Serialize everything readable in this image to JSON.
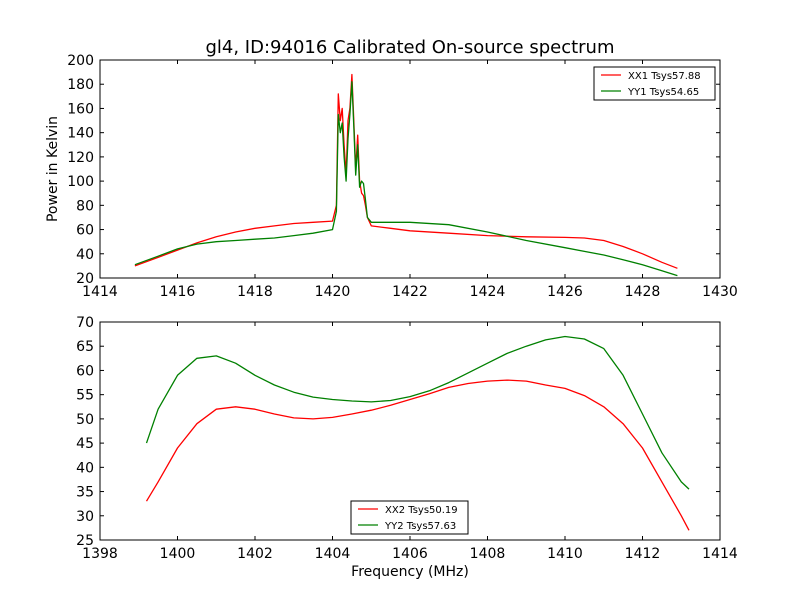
{
  "figure": {
    "title": "gl4, ID:94016 Calibrated On-source spectrum",
    "ylabel": "Power in Kelvin",
    "xlabel": "Frequency (MHz)"
  },
  "chart_data": [
    {
      "type": "line",
      "title": "gl4, ID:94016 Calibrated On-source spectrum",
      "xlabel": "",
      "ylabel": "Power in Kelvin",
      "xlim": [
        1414,
        1430
      ],
      "ylim": [
        20,
        200
      ],
      "xticks": [
        1414,
        1416,
        1418,
        1420,
        1422,
        1424,
        1426,
        1428,
        1430
      ],
      "yticks": [
        20,
        40,
        60,
        80,
        100,
        120,
        140,
        160,
        180,
        200
      ],
      "grid": false,
      "legend": "top-right",
      "series": [
        {
          "name": "XX1 Tsys57.88",
          "color": "#ff0000",
          "x": [
            1414.9,
            1415.5,
            1416.0,
            1416.5,
            1417.0,
            1417.5,
            1418.0,
            1418.5,
            1419.0,
            1419.5,
            1420.0,
            1420.1,
            1420.15,
            1420.2,
            1420.25,
            1420.3,
            1420.35,
            1420.4,
            1420.45,
            1420.5,
            1420.55,
            1420.6,
            1420.65,
            1420.7,
            1420.75,
            1420.8,
            1420.85,
            1420.9,
            1421.0,
            1421.5,
            1422.0,
            1423.0,
            1424.0,
            1425.0,
            1426.0,
            1426.5,
            1427.0,
            1427.5,
            1428.0,
            1428.5,
            1428.9
          ],
          "y": [
            30,
            37,
            43,
            49,
            54,
            58,
            61,
            63,
            65,
            66,
            67,
            80,
            172,
            150,
            160,
            130,
            105,
            150,
            160,
            188,
            150,
            110,
            138,
            100,
            90,
            88,
            80,
            70,
            63,
            61,
            59,
            57,
            55,
            54,
            53.5,
            53,
            51,
            46,
            40,
            33,
            28
          ]
        },
        {
          "name": "YY1 Tsys54.65",
          "color": "#008000",
          "x": [
            1414.9,
            1415.5,
            1416.0,
            1416.5,
            1417.0,
            1417.5,
            1418.0,
            1418.5,
            1419.0,
            1419.5,
            1420.0,
            1420.1,
            1420.15,
            1420.2,
            1420.25,
            1420.3,
            1420.35,
            1420.4,
            1420.45,
            1420.5,
            1420.55,
            1420.6,
            1420.65,
            1420.7,
            1420.75,
            1420.8,
            1420.85,
            1420.9,
            1421.0,
            1421.5,
            1422.0,
            1423.0,
            1424.0,
            1425.0,
            1426.0,
            1426.5,
            1427.0,
            1427.5,
            1428.0,
            1428.5,
            1428.9
          ],
          "y": [
            31,
            38,
            44,
            48,
            50,
            51,
            52,
            53,
            55,
            57,
            60,
            75,
            155,
            140,
            148,
            120,
            100,
            135,
            155,
            182,
            145,
            105,
            130,
            95,
            100,
            98,
            85,
            70,
            66,
            66,
            66,
            64,
            58,
            51,
            45,
            42,
            39,
            35,
            31,
            26,
            22
          ]
        }
      ]
    },
    {
      "type": "line",
      "title": "",
      "xlabel": "Frequency (MHz)",
      "ylabel": "",
      "xlim": [
        1398,
        1414
      ],
      "ylim": [
        25,
        70
      ],
      "xticks": [
        1398,
        1400,
        1402,
        1404,
        1406,
        1408,
        1410,
        1412,
        1414
      ],
      "yticks": [
        25,
        30,
        35,
        40,
        45,
        50,
        55,
        60,
        65,
        70
      ],
      "grid": false,
      "legend": "bottom-center",
      "series": [
        {
          "name": "XX2 Tsys50.19",
          "color": "#ff0000",
          "x": [
            1399.2,
            1399.5,
            1400.0,
            1400.5,
            1401.0,
            1401.5,
            1402.0,
            1402.5,
            1403.0,
            1403.5,
            1404.0,
            1404.5,
            1405.0,
            1405.5,
            1406.0,
            1406.5,
            1407.0,
            1407.5,
            1408.0,
            1408.5,
            1409.0,
            1409.5,
            1410.0,
            1410.5,
            1411.0,
            1411.5,
            1412.0,
            1412.5,
            1413.0,
            1413.2
          ],
          "y": [
            33,
            37,
            44,
            49,
            52,
            52.5,
            52,
            51,
            50.2,
            50,
            50.3,
            51,
            51.8,
            52.8,
            54,
            55.2,
            56.5,
            57.3,
            57.8,
            58,
            57.8,
            57,
            56.3,
            54.8,
            52.5,
            49,
            44,
            37,
            30,
            27
          ]
        },
        {
          "name": "YY2 Tsys57.63",
          "color": "#008000",
          "x": [
            1399.2,
            1399.5,
            1400.0,
            1400.5,
            1401.0,
            1401.5,
            1402.0,
            1402.5,
            1403.0,
            1403.5,
            1404.0,
            1404.5,
            1405.0,
            1405.5,
            1406.0,
            1406.5,
            1407.0,
            1407.5,
            1408.0,
            1408.5,
            1409.0,
            1409.5,
            1410.0,
            1410.5,
            1411.0,
            1411.5,
            1412.0,
            1412.5,
            1413.0,
            1413.2
          ],
          "y": [
            45,
            52,
            59,
            62.5,
            63,
            61.5,
            59,
            57,
            55.5,
            54.5,
            54,
            53.7,
            53.5,
            53.8,
            54.6,
            55.8,
            57.5,
            59.5,
            61.5,
            63.5,
            65,
            66.3,
            67,
            66.5,
            64.5,
            59,
            51,
            43,
            37,
            35.5
          ]
        }
      ]
    }
  ]
}
